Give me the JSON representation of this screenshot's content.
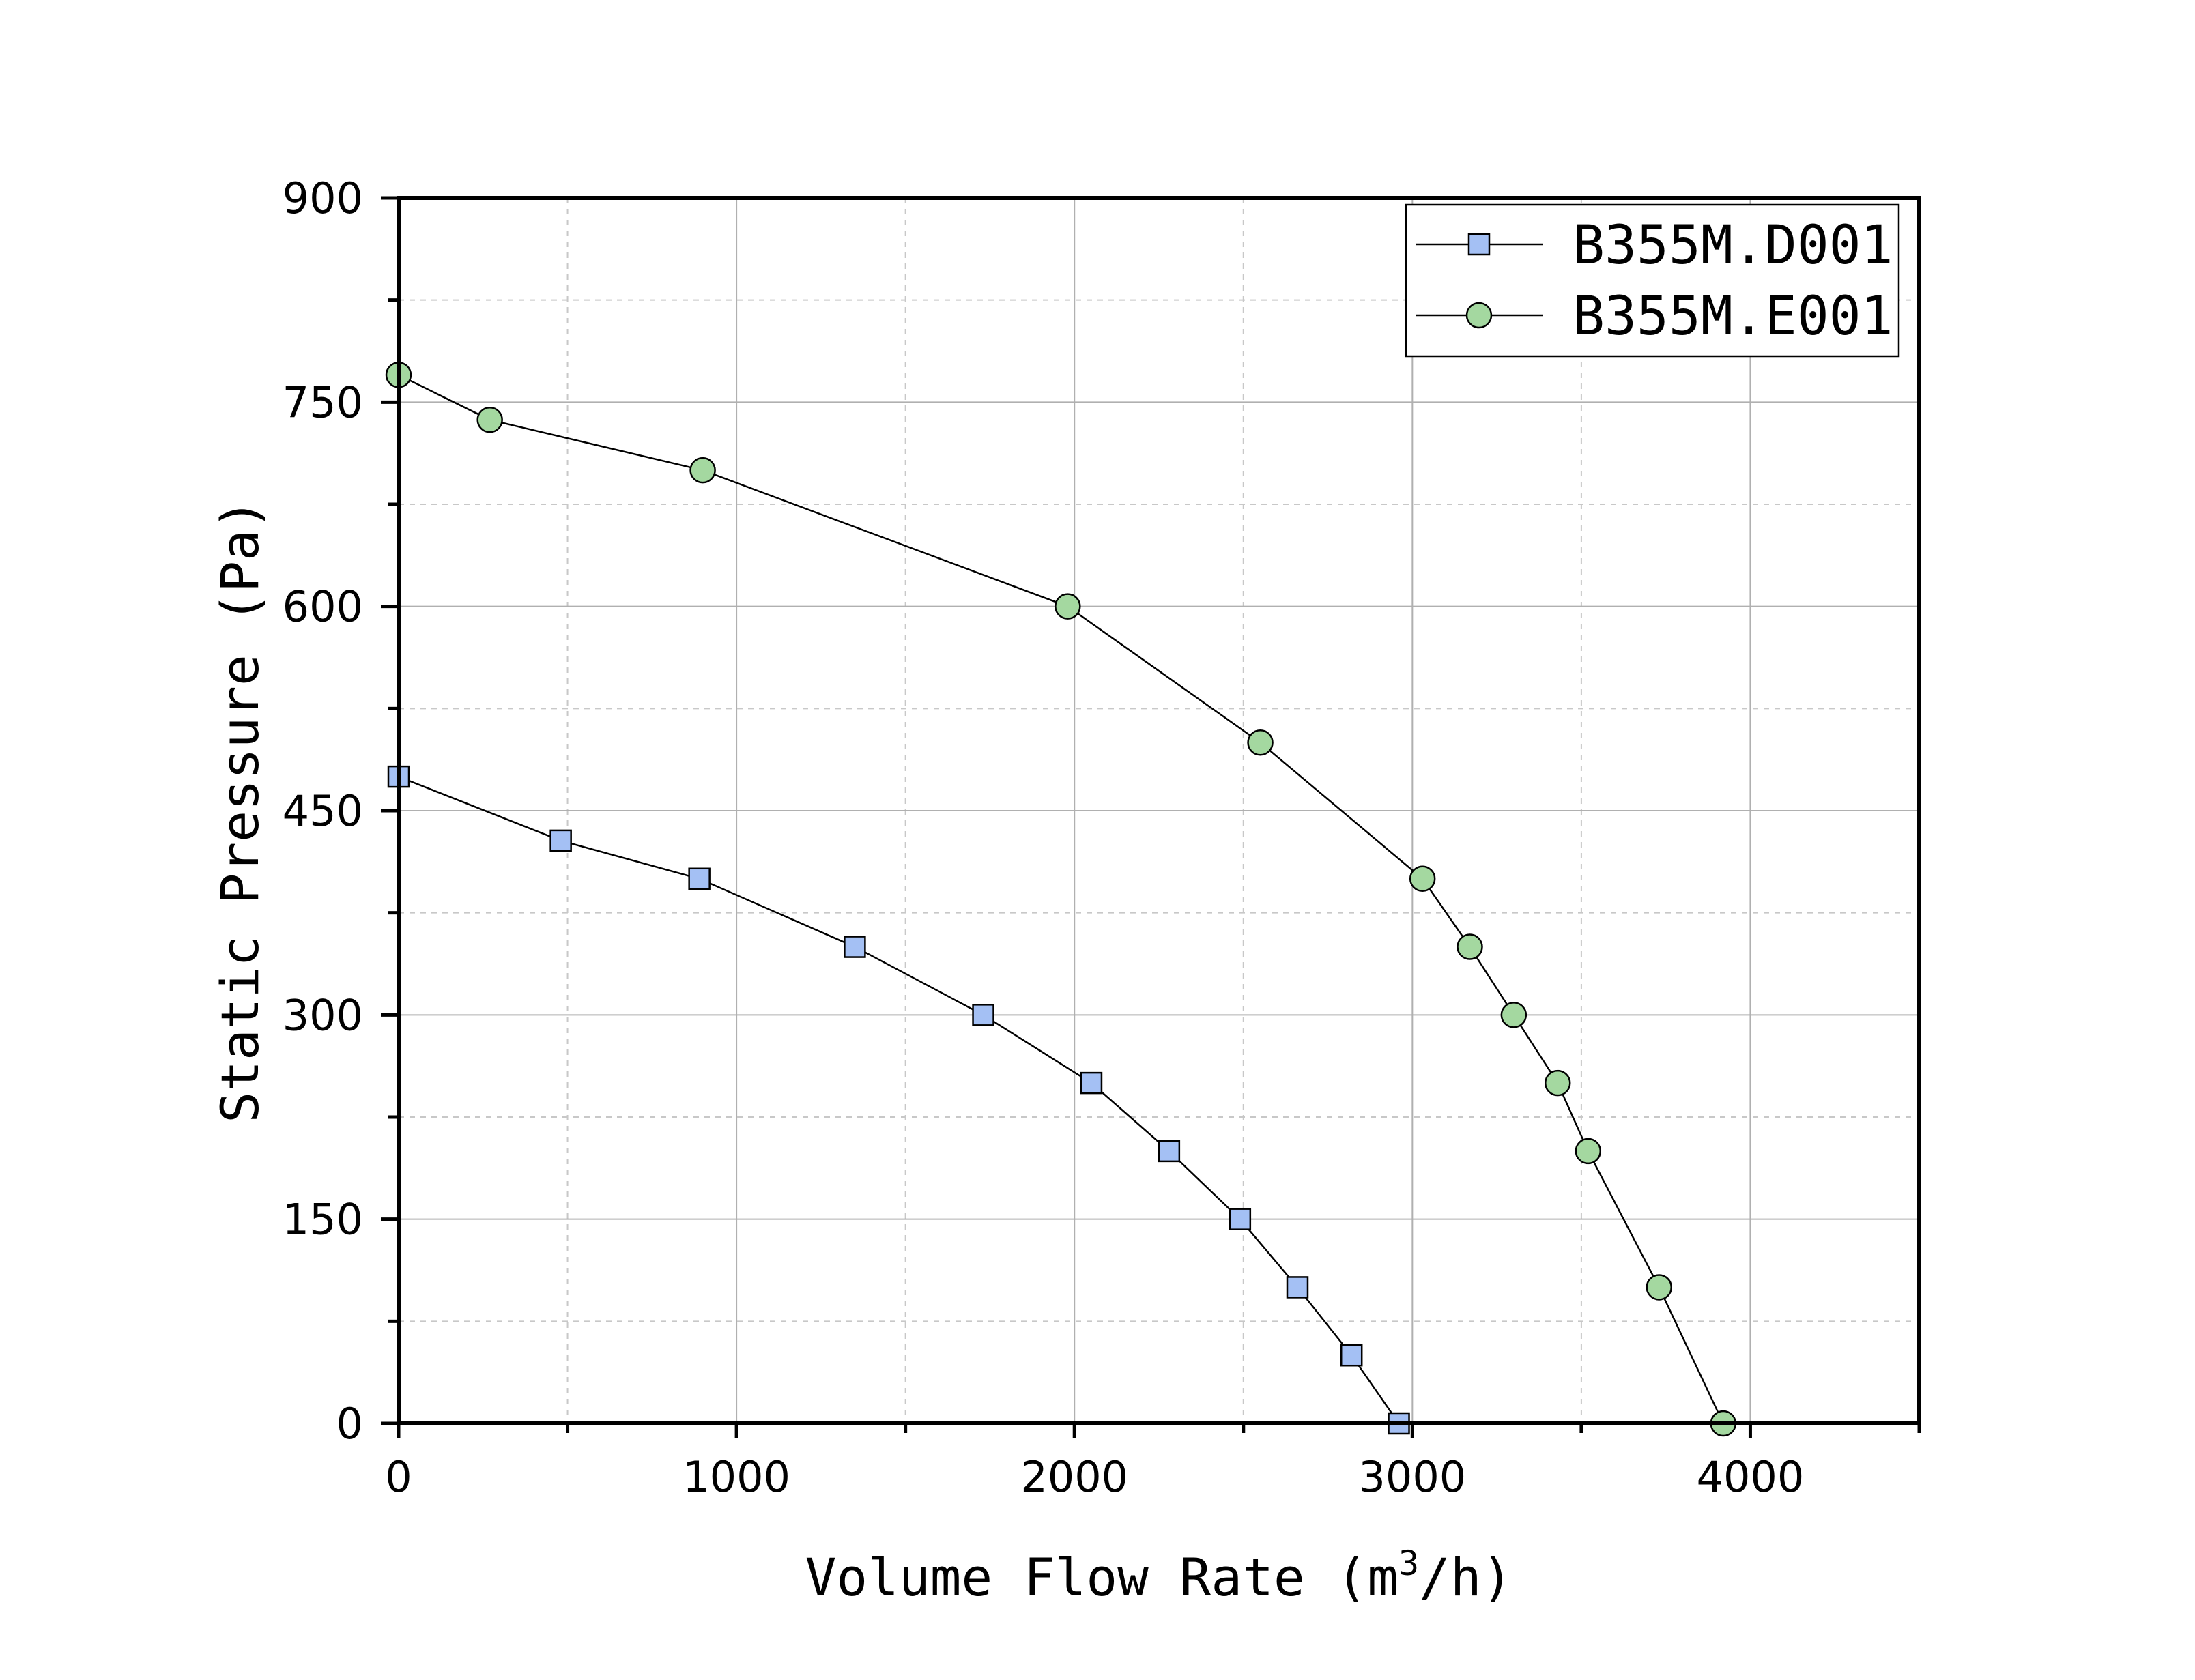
{
  "chart_data": {
    "type": "line",
    "title": "",
    "xlabel_main": "Volume Flow Rate (m",
    "xlabel_sup": "3",
    "xlabel_tail": "/h)",
    "ylabel": "Static Pressure (Pa)",
    "xlim": [
      0,
      4500
    ],
    "ylim": [
      0,
      900
    ],
    "x_ticks": [
      0,
      1000,
      2000,
      3000,
      4000
    ],
    "x_tick_labels": [
      "0",
      "1000",
      "2000",
      "3000",
      "4000"
    ],
    "x_minor_step": 500,
    "y_ticks": [
      0,
      150,
      300,
      450,
      600,
      750,
      900
    ],
    "y_tick_labels": [
      "0",
      "150",
      "300",
      "450",
      "600",
      "750",
      "900"
    ],
    "y_minor_step": 75,
    "grid": true,
    "legend_position": "top-right",
    "series": [
      {
        "name": "B355M.D001",
        "marker": "square",
        "color": "#a4c0f4",
        "x": [
          0,
          480,
          890,
          1350,
          1730,
          2050,
          2280,
          2490,
          2660,
          2820,
          2960
        ],
        "y": [
          475,
          428,
          400,
          350,
          300,
          250,
          200,
          150,
          100,
          50,
          0
        ]
      },
      {
        "name": "B355M.E001",
        "marker": "circle",
        "color": "#a4d8a0",
        "x": [
          0,
          270,
          900,
          1980,
          2550,
          3030,
          3170,
          3300,
          3430,
          3520,
          3730,
          3920
        ],
        "y": [
          770,
          737,
          700,
          600,
          500,
          400,
          350,
          300,
          250,
          200,
          100,
          0
        ]
      }
    ]
  }
}
